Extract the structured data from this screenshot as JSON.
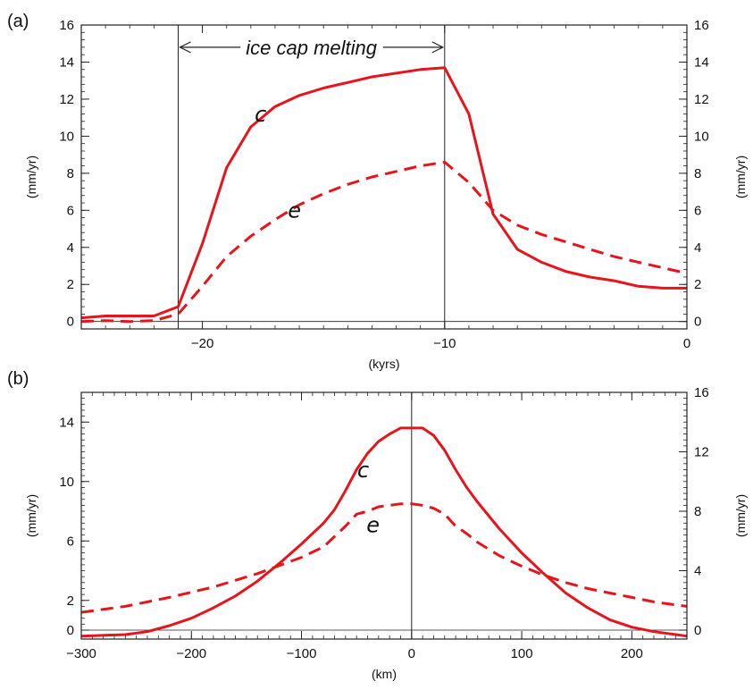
{
  "chart_data": [
    {
      "panel_label": "(a)",
      "type": "line",
      "xlabel": "(kyrs)",
      "ylabel_left": "(mm/yr)",
      "ylabel_right": "(mm/yr)",
      "xlim": [
        -25,
        0
      ],
      "ylim": [
        -0.4,
        16
      ],
      "xticks": [
        -20,
        -10,
        0
      ],
      "xtick_labels": [
        "−20",
        "−10",
        "0"
      ],
      "yticks_left": [
        0,
        2,
        4,
        6,
        8,
        10,
        12,
        14,
        16
      ],
      "ytick_labels_left": [
        "0",
        "2",
        "4",
        "6",
        "8",
        "10",
        "12",
        "14",
        "16"
      ],
      "yticks_right": [
        0,
        2,
        4,
        6,
        8,
        10,
        12,
        14,
        16
      ],
      "ytick_labels_right": [
        "0",
        "2",
        "4",
        "6",
        "8",
        "10",
        "12",
        "14",
        "16"
      ],
      "vlines": [
        -21,
        -10
      ],
      "annotation": {
        "text": "ice cap melting",
        "from": -21,
        "to": -10,
        "y": 14.8
      },
      "series": [
        {
          "name": "c",
          "style": "solid",
          "color": "#e8141c",
          "x": [
            -25,
            -24,
            -23,
            -22,
            -21,
            -20,
            -19,
            -18,
            -17,
            -16,
            -15,
            -14,
            -13,
            -12,
            -11,
            -10,
            -9,
            -8,
            -7,
            -6,
            -5,
            -4,
            -3,
            -2,
            -1,
            0
          ],
          "y": [
            0.2,
            0.3,
            0.3,
            0.3,
            0.8,
            4.2,
            8.3,
            10.5,
            11.6,
            12.2,
            12.6,
            12.9,
            13.2,
            13.4,
            13.6,
            13.7,
            11.2,
            5.8,
            3.9,
            3.2,
            2.7,
            2.4,
            2.2,
            1.9,
            1.8,
            1.8
          ],
          "label_at": {
            "x": -17.6,
            "y": 10.8
          }
        },
        {
          "name": "e",
          "style": "dashed",
          "color": "#e8141c",
          "x": [
            -25,
            -24,
            -23,
            -22,
            -21,
            -20,
            -19,
            -18,
            -17,
            -16,
            -15,
            -14,
            -13,
            -12,
            -11,
            -10,
            -9,
            -8,
            -7,
            -6,
            -5,
            -4,
            -3,
            -2,
            -1,
            0
          ],
          "y": [
            0.0,
            0.05,
            0.0,
            0.05,
            0.4,
            1.9,
            3.5,
            4.6,
            5.5,
            6.3,
            6.9,
            7.4,
            7.8,
            8.1,
            8.4,
            8.6,
            7.5,
            6.0,
            5.2,
            4.7,
            4.3,
            3.9,
            3.5,
            3.2,
            2.9,
            2.6
          ],
          "label_at": {
            "x": -16.2,
            "y": 5.6
          }
        }
      ]
    },
    {
      "panel_label": "(b)",
      "type": "line",
      "xlabel": "(km)",
      "ylabel_left": "(mm/yr)",
      "ylabel_right": "(mm/yr)",
      "xlim": [
        -300,
        250
      ],
      "ylim": [
        -0.6,
        16
      ],
      "xticks": [
        -300,
        -200,
        -100,
        0,
        100,
        200
      ],
      "xtick_labels": [
        "−300",
        "−200",
        "−100",
        "0",
        "100",
        "200"
      ],
      "yticks_left": [
        0,
        2,
        6,
        10,
        14
      ],
      "ytick_labels_left": [
        "0",
        "2",
        "6",
        "10",
        "14"
      ],
      "yticks_right": [
        0,
        4,
        8,
        12,
        16
      ],
      "ytick_labels_right": [
        "0",
        "4",
        "8",
        "12",
        "16"
      ],
      "vlines": [
        0
      ],
      "series": [
        {
          "name": "c",
          "style": "solid",
          "color": "#e8141c",
          "x": [
            -300,
            -260,
            -240,
            -220,
            -200,
            -180,
            -160,
            -140,
            -120,
            -100,
            -80,
            -70,
            -60,
            -50,
            -40,
            -30,
            -20,
            -10,
            0,
            10,
            20,
            30,
            40,
            50,
            60,
            80,
            100,
            120,
            140,
            160,
            180,
            200,
            220,
            240,
            250
          ],
          "y": [
            -0.4,
            -0.3,
            -0.1,
            0.3,
            0.8,
            1.5,
            2.3,
            3.3,
            4.5,
            5.8,
            7.2,
            8.1,
            9.4,
            10.8,
            11.9,
            12.7,
            13.2,
            13.6,
            13.6,
            13.6,
            13.1,
            12.1,
            10.8,
            9.6,
            8.6,
            6.8,
            5.2,
            3.8,
            2.5,
            1.5,
            0.7,
            0.2,
            -0.1,
            -0.3,
            -0.4
          ],
          "label_at": {
            "x": -44,
            "y": 10.3
          }
        },
        {
          "name": "e",
          "style": "dashed",
          "color": "#e8141c",
          "x": [
            -300,
            -260,
            -220,
            -180,
            -140,
            -100,
            -80,
            -70,
            -60,
            -50,
            -40,
            -30,
            -20,
            -10,
            0,
            10,
            20,
            30,
            40,
            50,
            60,
            80,
            100,
            120,
            140,
            160,
            180,
            200,
            220,
            250
          ],
          "y": [
            1.2,
            1.6,
            2.2,
            2.9,
            3.8,
            4.9,
            5.6,
            6.3,
            7.0,
            7.8,
            8.0,
            8.3,
            8.4,
            8.5,
            8.5,
            8.4,
            8.2,
            7.8,
            7.0,
            6.5,
            5.9,
            5.0,
            4.3,
            3.7,
            3.2,
            2.8,
            2.5,
            2.2,
            1.9,
            1.6
          ],
          "label_at": {
            "x": -35,
            "y": 6.6
          }
        }
      ]
    }
  ]
}
